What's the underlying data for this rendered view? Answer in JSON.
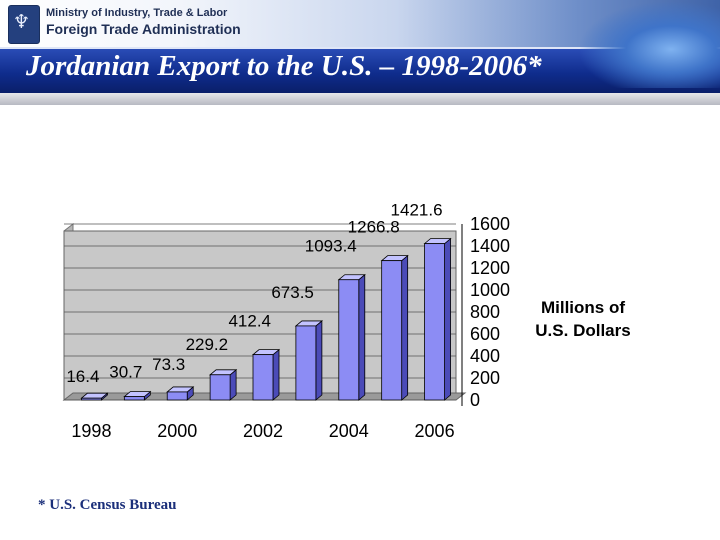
{
  "header": {
    "ministry": "Ministry of Industry, Trade & Labor",
    "agency": "Foreign Trade Administration",
    "emblem_icon": "menorah-emblem-icon"
  },
  "title": "Jordanian Export to the U.S. – 1998-2006*",
  "footnote": "* U.S. Census Bureau",
  "chart_data": {
    "type": "bar",
    "categories": [
      "1998",
      "1999",
      "2000",
      "2001",
      "2002",
      "2003",
      "2004",
      "2005",
      "2006"
    ],
    "values": [
      16.4,
      30.7,
      73.3,
      229.2,
      412.4,
      673.5,
      1093.4,
      1266.8,
      1421.6
    ],
    "value_labels": [
      "16.4",
      "30.7",
      "73.3",
      "229.2",
      "412.4",
      "673.5",
      "1093.4",
      "1266.8",
      "1421.6"
    ],
    "x_tick_labels": [
      "1998",
      "2000",
      "2002",
      "2004",
      "2006"
    ],
    "y_ticks": [
      0,
      200,
      400,
      600,
      800,
      1000,
      1200,
      1400,
      1600
    ],
    "ylim": [
      0,
      1600
    ],
    "ylabel_lines": [
      "Millions of",
      "U.S. Dollars"
    ],
    "title": "",
    "xlabel": "",
    "grid": true,
    "three_d": true,
    "y_axis_side": "right",
    "colors": {
      "bar": "#8c8cf4",
      "bar_side": "#4b4bb8",
      "bar_top": "#c3c3ff",
      "plot_bg": "#c8c8c8",
      "grid": "#555555",
      "bar_edge": "#000000"
    }
  }
}
